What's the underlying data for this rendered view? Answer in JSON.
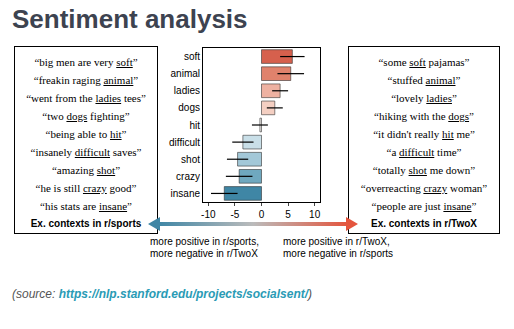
{
  "title": "Sentiment analysis",
  "chart_data": {
    "type": "bar",
    "orientation": "horizontal",
    "categories": [
      "soft",
      "animal",
      "ladies",
      "dogs",
      "hit",
      "difficult",
      "shot",
      "crazy",
      "insane"
    ],
    "values": [
      5.8,
      5.5,
      3.5,
      2.5,
      -0.3,
      -3.5,
      -4.5,
      -4.2,
      -7.0
    ],
    "errors": [
      2.3,
      2.5,
      1.5,
      1.5,
      1.5,
      2.0,
      2.0,
      2.5,
      2.5
    ],
    "colors": [
      "#d6604d",
      "#e0826c",
      "#eeb1a1",
      "#f4cfc2",
      "#f4f1ef",
      "#c9dfe8",
      "#a3c8d8",
      "#6fa8bf",
      "#3f86a5"
    ],
    "xlim": [
      -11,
      11
    ],
    "xticks": [
      -10,
      -5,
      0,
      5,
      10
    ]
  },
  "left_box": {
    "caption": "Ex. contexts in r/sports",
    "contexts": [
      {
        "text": "“big men are very soft”",
        "underline": "soft"
      },
      {
        "text": "“freakin raging animal”",
        "underline": "animal"
      },
      {
        "text": "“went from the ladies tees”",
        "underline": "ladies"
      },
      {
        "text": "“two dogs fighting”",
        "underline": "dogs"
      },
      {
        "text": "“being able to hit”",
        "underline": "hit"
      },
      {
        "text": "“insanely difficult saves”",
        "underline": "difficult"
      },
      {
        "text": "“amazing shot”",
        "underline": "shot"
      },
      {
        "text": "“he is still crazy good”",
        "underline": "crazy"
      },
      {
        "text": "“his stats are insane”",
        "underline": "insane"
      }
    ]
  },
  "right_box": {
    "caption": "Ex. contexts in r/TwoX",
    "contexts": [
      {
        "text": "“some soft pajamas”",
        "underline": "soft"
      },
      {
        "text": "“stuffed animal”",
        "underline": "animal"
      },
      {
        "text": "“lovely ladies”",
        "underline": "ladies"
      },
      {
        "text": "“hiking with the dogs”",
        "underline": "dogs"
      },
      {
        "text": "“it didn't really hit me”",
        "underline": "hit"
      },
      {
        "text": "“a difficult time”",
        "underline": "difficult"
      },
      {
        "text": "“totally shot me down”",
        "underline": "shot"
      },
      {
        "text": "“overreacting crazy woman”",
        "underline": "crazy"
      },
      {
        "text": "“people are just insane”",
        "underline": "insane"
      }
    ]
  },
  "arrow": {
    "left": [
      "more positive in r/sports,",
      "more negative in r/TwoX"
    ],
    "right": [
      "more positive in r/TwoX,",
      "more negative in r/sports"
    ]
  },
  "source": {
    "prefix": "(source: ",
    "link": "https://nlp.stanford.edu/projects/socialsent/",
    "suffix": ")"
  }
}
